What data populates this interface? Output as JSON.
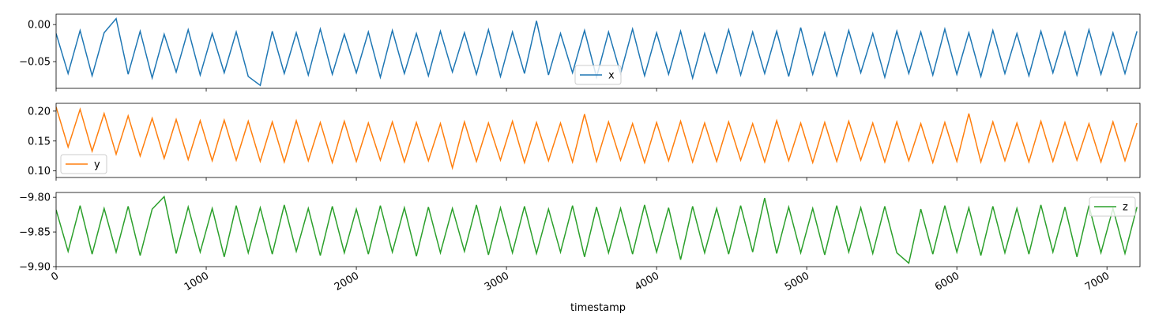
{
  "chart_data": [
    {
      "type": "line",
      "legend": "lower center",
      "x": [
        0,
        80,
        160,
        240,
        320,
        400,
        480,
        560,
        640,
        720,
        800,
        880,
        960,
        1040,
        1120,
        1200,
        1280,
        1360,
        1440,
        1520,
        1600,
        1680,
        1760,
        1840,
        1920,
        2000,
        2080,
        2160,
        2240,
        2320,
        2400,
        2480,
        2560,
        2640,
        2720,
        2800,
        2880,
        2960,
        3040,
        3120,
        3200,
        3280,
        3360,
        3440,
        3520,
        3600,
        3680,
        3760,
        3840,
        3920,
        4000,
        4080,
        4160,
        4240,
        4320,
        4400,
        4480,
        4560,
        4640,
        4720,
        4800,
        4880,
        4960,
        5040,
        5120,
        5200,
        5280,
        5360,
        5440,
        5520,
        5600,
        5680,
        5760,
        5840,
        5920,
        6000,
        6080,
        6160,
        6240,
        6320,
        6400,
        6480,
        6560,
        6640,
        6720,
        6800,
        6880,
        6960,
        7040,
        7120,
        7200
      ],
      "series": [
        {
          "name": "x",
          "color": "#1f77b4",
          "values": [
            -0.012,
            -0.066,
            -0.008,
            -0.069,
            -0.011,
            0.008,
            -0.067,
            -0.009,
            -0.072,
            -0.013,
            -0.064,
            -0.007,
            -0.068,
            -0.012,
            -0.065,
            -0.01,
            -0.07,
            -0.082,
            -0.009,
            -0.066,
            -0.011,
            -0.068,
            -0.006,
            -0.067,
            -0.013,
            -0.065,
            -0.01,
            -0.071,
            -0.008,
            -0.066,
            -0.012,
            -0.069,
            -0.009,
            -0.064,
            -0.011,
            -0.067,
            -0.007,
            -0.07,
            -0.01,
            -0.066,
            0.005,
            -0.068,
            -0.012,
            -0.065,
            -0.008,
            -0.071,
            -0.01,
            -0.066,
            -0.006,
            -0.069,
            -0.011,
            -0.067,
            -0.009,
            -0.072,
            -0.012,
            -0.065,
            -0.007,
            -0.068,
            -0.01,
            -0.066,
            -0.009,
            -0.07,
            -0.004,
            -0.067,
            -0.011,
            -0.069,
            -0.008,
            -0.065,
            -0.012,
            -0.071,
            -0.009,
            -0.066,
            -0.01,
            -0.068,
            -0.006,
            -0.067,
            -0.011,
            -0.07,
            -0.008,
            -0.066,
            -0.012,
            -0.069,
            -0.009,
            -0.065,
            -0.01,
            -0.068,
            -0.007,
            -0.067,
            -0.011,
            -0.066,
            -0.009
          ]
        }
      ],
      "xlim": [
        0,
        7220
      ],
      "xticks": [
        0,
        1000,
        2000,
        3000,
        4000,
        5000,
        6000,
        7000
      ],
      "ylim": [
        -0.086,
        0.014
      ],
      "yticks": [
        {
          "value": 0,
          "label": "0.00"
        },
        {
          "value": -0.05,
          "label": "−0.05"
        }
      ]
    },
    {
      "type": "line",
      "legend": "lower left",
      "x": [
        0,
        80,
        160,
        240,
        320,
        400,
        480,
        560,
        640,
        720,
        800,
        880,
        960,
        1040,
        1120,
        1200,
        1280,
        1360,
        1440,
        1520,
        1600,
        1680,
        1760,
        1840,
        1920,
        2000,
        2080,
        2160,
        2240,
        2320,
        2400,
        2480,
        2560,
        2640,
        2720,
        2800,
        2880,
        2960,
        3040,
        3120,
        3200,
        3280,
        3360,
        3440,
        3520,
        3600,
        3680,
        3760,
        3840,
        3920,
        4000,
        4080,
        4160,
        4240,
        4320,
        4400,
        4480,
        4560,
        4640,
        4720,
        4800,
        4880,
        4960,
        5040,
        5120,
        5200,
        5280,
        5360,
        5440,
        5520,
        5600,
        5680,
        5760,
        5840,
        5920,
        6000,
        6080,
        6160,
        6240,
        6320,
        6400,
        6480,
        6560,
        6640,
        6720,
        6800,
        6880,
        6960,
        7040,
        7120,
        7200
      ],
      "series": [
        {
          "name": "y",
          "color": "#ff7f0e",
          "values": [
            0.207,
            0.14,
            0.203,
            0.133,
            0.196,
            0.128,
            0.192,
            0.125,
            0.188,
            0.121,
            0.186,
            0.119,
            0.184,
            0.117,
            0.185,
            0.118,
            0.183,
            0.116,
            0.182,
            0.115,
            0.184,
            0.117,
            0.181,
            0.114,
            0.183,
            0.116,
            0.18,
            0.118,
            0.182,
            0.115,
            0.181,
            0.117,
            0.179,
            0.105,
            0.182,
            0.116,
            0.18,
            0.118,
            0.183,
            0.114,
            0.181,
            0.117,
            0.18,
            0.115,
            0.195,
            0.116,
            0.182,
            0.118,
            0.179,
            0.114,
            0.181,
            0.117,
            0.183,
            0.115,
            0.18,
            0.116,
            0.182,
            0.118,
            0.179,
            0.115,
            0.184,
            0.117,
            0.18,
            0.114,
            0.181,
            0.116,
            0.183,
            0.118,
            0.18,
            0.115,
            0.182,
            0.117,
            0.179,
            0.114,
            0.181,
            0.116,
            0.196,
            0.115,
            0.182,
            0.117,
            0.18,
            0.115,
            0.183,
            0.116,
            0.181,
            0.118,
            0.179,
            0.115,
            0.182,
            0.117,
            0.18
          ]
        }
      ],
      "xlim": [
        0,
        7220
      ],
      "xticks": [
        0,
        1000,
        2000,
        3000,
        4000,
        5000,
        6000,
        7000
      ],
      "ylim": [
        0.089,
        0.213
      ],
      "yticks": [
        {
          "value": 0.2,
          "label": "0.20"
        },
        0.15,
        {
          "value": 0.1,
          "label": "0.10"
        }
      ]
    },
    {
      "type": "line",
      "legend": "upper right",
      "xlabel": "timestamp",
      "x": [
        0,
        80,
        160,
        240,
        320,
        400,
        480,
        560,
        640,
        720,
        800,
        880,
        960,
        1040,
        1120,
        1200,
        1280,
        1360,
        1440,
        1520,
        1600,
        1680,
        1760,
        1840,
        1920,
        2000,
        2080,
        2160,
        2240,
        2320,
        2400,
        2480,
        2560,
        2640,
        2720,
        2800,
        2880,
        2960,
        3040,
        3120,
        3200,
        3280,
        3360,
        3440,
        3520,
        3600,
        3680,
        3760,
        3840,
        3920,
        4000,
        4080,
        4160,
        4240,
        4320,
        4400,
        4480,
        4560,
        4640,
        4720,
        4800,
        4880,
        4960,
        5040,
        5120,
        5200,
        5280,
        5360,
        5440,
        5520,
        5600,
        5680,
        5760,
        5840,
        5920,
        6000,
        6080,
        6160,
        6240,
        6320,
        6400,
        6480,
        6560,
        6640,
        6720,
        6800,
        6880,
        6960,
        7040,
        7120,
        7200
      ],
      "series": [
        {
          "name": "z",
          "color": "#2ca02c",
          "values": [
            -9.818,
            -9.878,
            -9.812,
            -9.882,
            -9.816,
            -9.879,
            -9.813,
            -9.884,
            -9.817,
            -9.799,
            -9.881,
            -9.814,
            -9.879,
            -9.816,
            -9.886,
            -9.812,
            -9.88,
            -9.815,
            -9.882,
            -9.811,
            -9.878,
            -9.816,
            -9.884,
            -9.813,
            -9.88,
            -9.817,
            -9.882,
            -9.812,
            -9.879,
            -9.815,
            -9.885,
            -9.814,
            -9.88,
            -9.816,
            -9.878,
            -9.811,
            -9.883,
            -9.815,
            -9.88,
            -9.813,
            -9.881,
            -9.817,
            -9.879,
            -9.812,
            -9.886,
            -9.814,
            -9.88,
            -9.816,
            -9.882,
            -9.811,
            -9.879,
            -9.815,
            -9.89,
            -9.813,
            -9.88,
            -9.816,
            -9.882,
            -9.812,
            -9.879,
            -9.801,
            -9.881,
            -9.814,
            -9.88,
            -9.816,
            -9.883,
            -9.812,
            -9.879,
            -9.815,
            -9.881,
            -9.813,
            -9.88,
            -9.895,
            -9.817,
            -9.882,
            -9.812,
            -9.879,
            -9.815,
            -9.884,
            -9.813,
            -9.88,
            -9.816,
            -9.882,
            -9.811,
            -9.879,
            -9.814,
            -9.886,
            -9.812,
            -9.88,
            -9.816,
            -9.881,
            -9.814
          ]
        }
      ],
      "xlim": [
        0,
        7220
      ],
      "xticks": [
        0,
        1000,
        2000,
        3000,
        4000,
        5000,
        6000,
        7000
      ],
      "ylim": [
        -9.9,
        -9.793
      ],
      "yticks": [
        {
          "value": -9.8,
          "label": "−9.80"
        },
        {
          "value": -9.85,
          "label": "−9.85"
        },
        {
          "value": -9.9,
          "label": "−9.90"
        }
      ]
    }
  ]
}
